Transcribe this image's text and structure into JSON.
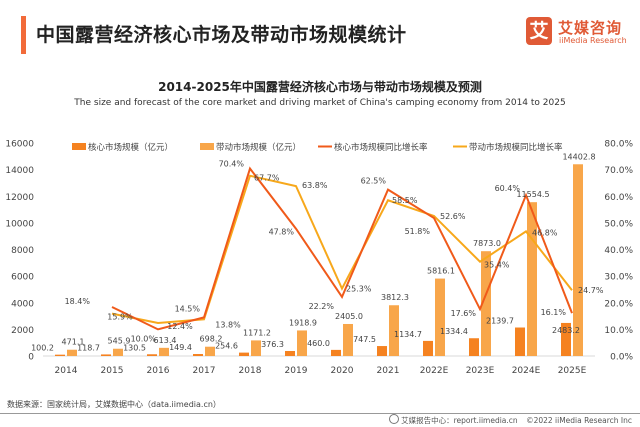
{
  "header": {
    "title": "中国露营经济核心市场及带动市场规模统计",
    "logo": {
      "glyph": "艾",
      "cn": "艾媒咨询",
      "en": "iiMedia Research"
    }
  },
  "footer": {
    "source": "数据来源：国家统计局，艾媒数据中心（data.iimedia.cn）",
    "report_center": "艾媒报告中心：report.iimedia.cn",
    "copyright": "©2022  iiMedia Research  Inc",
    "report_icon": "globe-icon"
  },
  "colors": {
    "accent": "#f26b3a",
    "core_bar": "#f58220",
    "driving_bar": "#f8a64a",
    "core_line": "#f05a1a",
    "driving_line": "#f7a81b"
  },
  "chart_data": {
    "type": "bar",
    "title": "2014-2025年中国露营经济核心市场与带动市场规模及预测",
    "subtitle": "The size and forecast of the core market and driving market of China's camping economy from 2014 to 2025",
    "categories": [
      "2014",
      "2015",
      "2016",
      "2017",
      "2018",
      "2019",
      "2020",
      "2021",
      "2022E",
      "2023E",
      "2024E",
      "2025E"
    ],
    "series": [
      {
        "name": "核心市场规模（亿元）",
        "type": "bar",
        "axis": "left",
        "values": [
          100.2,
          118.7,
          130.5,
          149.4,
          254.6,
          376.3,
          460.0,
          747.5,
          1134.7,
          1334.4,
          2139.7,
          2483.2
        ],
        "labels": [
          "100.2",
          "118.7",
          "130.5",
          "149.4",
          "254.6",
          "376.3",
          "460.0",
          "747.5",
          "1134.7",
          "1334.4",
          "2139.7",
          "2483.2"
        ]
      },
      {
        "name": "带动市场规模（亿元）",
        "type": "bar",
        "axis": "left",
        "values": [
          471.1,
          545.9,
          613.4,
          698.2,
          1171.2,
          1918.9,
          2405.0,
          3812.3,
          5816.1,
          7873.0,
          11554.5,
          14402.8
        ],
        "labels": [
          "471.1",
          "545.9",
          "613.4",
          "698.2",
          "1171.2",
          "1918.9",
          "2405.0",
          "3812.3",
          "5816.1",
          "7873.0",
          "11554.5",
          "14402.8"
        ]
      },
      {
        "name": "核心市场规模同比增长率",
        "type": "line",
        "axis": "right",
        "values": [
          null,
          18.4,
          10.0,
          14.5,
          70.4,
          47.8,
          22.2,
          62.5,
          51.8,
          17.6,
          60.4,
          16.1
        ],
        "labels": [
          "",
          "18.4%",
          "10.0%",
          "14.5%",
          "70.4%",
          "47.8%",
          "22.2%",
          "62.5%",
          "51.8%",
          "17.6%",
          "60.4%",
          "16.1%"
        ]
      },
      {
        "name": "带动市场规模同比增长率",
        "type": "line",
        "axis": "right",
        "values": [
          null,
          15.9,
          12.4,
          13.8,
          67.7,
          63.8,
          25.3,
          58.5,
          52.6,
          35.4,
          46.8,
          24.7
        ],
        "labels": [
          "",
          "15.9%",
          "12.4%",
          "13.8%",
          "67.7%",
          "63.8%",
          "25.3%",
          "58.5%",
          "52.6%",
          "35.4%",
          "46.8%",
          "24.7%"
        ]
      }
    ],
    "y_left": {
      "ticks": [
        "0",
        "2000",
        "4000",
        "6000",
        "8000",
        "10000",
        "12000",
        "14000",
        "16000"
      ],
      "ylim": [
        0,
        16000
      ]
    },
    "y_right": {
      "ticks": [
        "0.0%",
        "10.0%",
        "20.0%",
        "30.0%",
        "40.0%",
        "50.0%",
        "60.0%",
        "70.0%",
        "80.0%"
      ],
      "ylim": [
        0,
        80
      ]
    },
    "xlabel": "",
    "ylabel": "",
    "grid": false,
    "legend": "top"
  }
}
